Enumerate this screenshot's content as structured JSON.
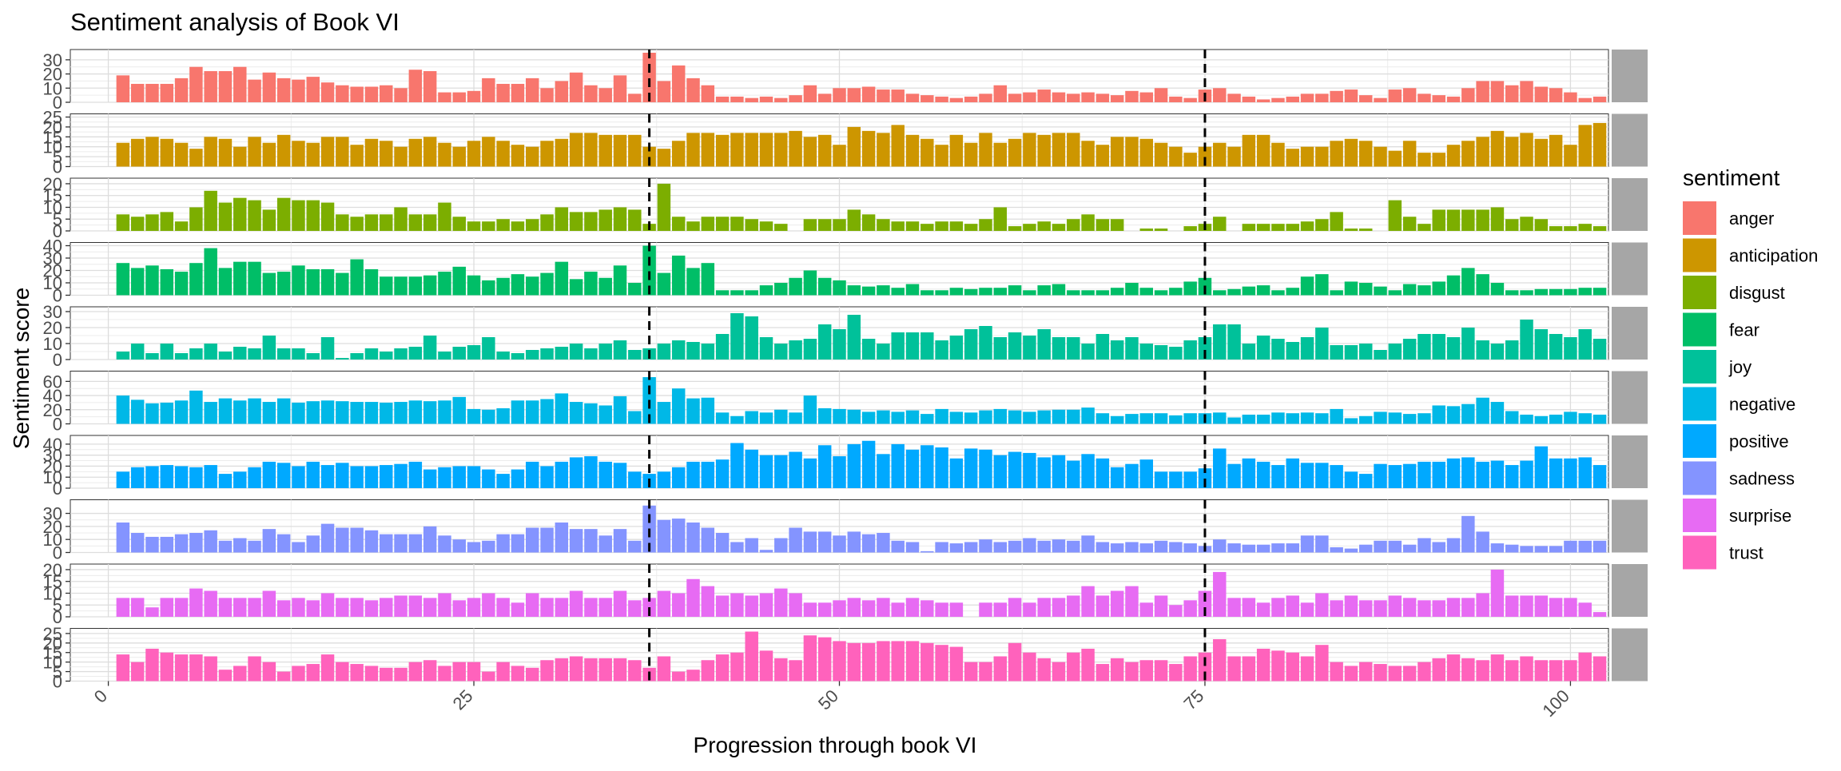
{
  "chart_data": {
    "type": "bar",
    "title": "Sentiment analysis of Book VI",
    "xlabel": "Progression through book VI",
    "ylabel": "Sentiment score",
    "xlim": [
      0,
      100
    ],
    "x_ticks": [
      0,
      25,
      50,
      75,
      100
    ],
    "vlines": [
      37,
      75
    ],
    "legend": {
      "title": "sentiment",
      "placement": "right"
    },
    "grid": true,
    "facets": [
      {
        "name": "anger",
        "strip_label": "anger",
        "color": "#F8766D",
        "ylim": [
          0,
          35
        ],
        "y_ticks": [
          0,
          10,
          20,
          30
        ],
        "values": [
          19,
          13,
          13,
          13,
          17,
          25,
          22,
          22,
          25,
          16,
          21,
          17,
          16,
          18,
          14,
          12,
          11,
          11,
          12,
          10,
          23,
          22,
          7,
          7,
          8,
          17,
          13,
          13,
          17,
          10,
          15,
          21,
          12,
          10,
          19,
          6,
          35,
          15,
          26,
          17,
          12,
          4,
          4,
          3,
          4,
          3,
          5,
          12,
          6,
          10,
          10,
          11,
          9,
          9,
          6,
          5,
          4,
          3,
          4,
          6,
          12,
          6,
          7,
          9,
          7,
          6,
          7,
          6,
          5,
          8,
          7,
          10,
          4,
          3,
          9,
          10,
          6,
          4,
          2,
          3,
          4,
          6,
          6,
          8,
          9,
          5,
          3,
          9,
          10,
          6,
          5,
          4,
          10,
          15,
          15,
          12,
          15,
          11,
          10,
          7,
          3,
          4
        ]
      },
      {
        "name": "anticipation",
        "strip_label": "anticipation",
        "color": "#CD9600",
        "ylim": [
          0,
          25
        ],
        "y_ticks": [
          0,
          5,
          10,
          15,
          20,
          25
        ],
        "values": [
          12,
          14,
          15,
          14,
          12,
          9,
          15,
          14,
          10,
          15,
          12,
          16,
          13,
          12,
          15,
          15,
          11,
          14,
          13,
          10,
          14,
          15,
          12,
          10,
          13,
          15,
          13,
          11,
          10,
          13,
          14,
          17,
          17,
          16,
          16,
          16,
          10,
          9,
          13,
          17,
          17,
          16,
          17,
          17,
          17,
          17,
          18,
          15,
          16,
          11,
          20,
          18,
          17,
          21,
          16,
          14,
          11,
          16,
          12,
          17,
          12,
          14,
          17,
          16,
          17,
          17,
          13,
          11,
          15,
          15,
          14,
          12,
          10,
          7,
          10,
          12,
          10,
          16,
          16,
          12,
          9,
          10,
          10,
          13,
          14,
          13,
          10,
          8,
          13,
          7,
          7,
          11,
          13,
          15,
          18,
          15,
          17,
          14,
          16,
          11,
          21,
          22
        ]
      },
      {
        "name": "disgust",
        "strip_label": "disgust",
        "color": "#7CAE00",
        "ylim": [
          0,
          21
        ],
        "y_ticks": [
          0,
          5,
          10,
          15,
          20
        ],
        "values": [
          7,
          6,
          7,
          8,
          4,
          10,
          17,
          12,
          14,
          13,
          9,
          14,
          13,
          13,
          12,
          7,
          6,
          7,
          7,
          10,
          7,
          7,
          12,
          6,
          4,
          4,
          5,
          4,
          5,
          7,
          10,
          8,
          8,
          9,
          10,
          9,
          3,
          20,
          6,
          4,
          6,
          6,
          6,
          5,
          4,
          3,
          0,
          5,
          5,
          5,
          9,
          7,
          5,
          4,
          4,
          3,
          4,
          4,
          3,
          5,
          10,
          2,
          3,
          4,
          3,
          5,
          7,
          5,
          5,
          0,
          1,
          1,
          0,
          2,
          3,
          6,
          0,
          3,
          3,
          3,
          3,
          4,
          5,
          8,
          1,
          1,
          0,
          13,
          6,
          3,
          9,
          9,
          9,
          9,
          10,
          5,
          6,
          5,
          2,
          2,
          3,
          2
        ]
      },
      {
        "name": "fear",
        "strip_label": "fear",
        "color": "#00BE67",
        "ylim": [
          0,
          40
        ],
        "y_ticks": [
          0,
          10,
          20,
          30,
          40
        ],
        "values": [
          26,
          22,
          24,
          21,
          19,
          26,
          38,
          22,
          27,
          27,
          18,
          19,
          24,
          21,
          21,
          18,
          29,
          21,
          15,
          15,
          15,
          16,
          19,
          23,
          16,
          12,
          14,
          17,
          15,
          18,
          27,
          13,
          19,
          14,
          24,
          10,
          40,
          18,
          32,
          22,
          26,
          4,
          4,
          4,
          8,
          10,
          14,
          20,
          14,
          12,
          8,
          7,
          8,
          6,
          9,
          4,
          4,
          6,
          5,
          6,
          6,
          8,
          4,
          8,
          9,
          4,
          4,
          4,
          6,
          10,
          6,
          4,
          6,
          11,
          14,
          4,
          5,
          7,
          8,
          4,
          6,
          15,
          17,
          4,
          11,
          10,
          7,
          4,
          9,
          8,
          11,
          16,
          22,
          17,
          10,
          4,
          4,
          5,
          5,
          5,
          6,
          6
        ]
      },
      {
        "name": "joy",
        "strip_label": "joy",
        "color": "#00C19A",
        "ylim": [
          0,
          31
        ],
        "y_ticks": [
          0,
          10,
          20,
          30
        ],
        "values": [
          5,
          10,
          4,
          10,
          4,
          7,
          10,
          5,
          8,
          7,
          15,
          7,
          7,
          4,
          14,
          1,
          4,
          7,
          5,
          7,
          8,
          15,
          5,
          8,
          9,
          14,
          5,
          4,
          6,
          7,
          8,
          10,
          7,
          10,
          12,
          6,
          7,
          10,
          12,
          11,
          10,
          16,
          29,
          27,
          14,
          10,
          12,
          13,
          22,
          19,
          28,
          13,
          10,
          17,
          17,
          17,
          12,
          15,
          19,
          21,
          14,
          17,
          15,
          19,
          14,
          14,
          10,
          16,
          12,
          14,
          10,
          9,
          8,
          12,
          14,
          22,
          22,
          10,
          15,
          13,
          11,
          14,
          20,
          9,
          9,
          10,
          6,
          10,
          13,
          16,
          16,
          14,
          20,
          12,
          10,
          12,
          25,
          19,
          16,
          14,
          19,
          13
        ]
      },
      {
        "name": "negative",
        "strip_label": "negative",
        "color": "#00B8E7",
        "ylim": [
          0,
          70
        ],
        "y_ticks": [
          0,
          20,
          40,
          60
        ],
        "values": [
          40,
          34,
          29,
          30,
          33,
          47,
          31,
          36,
          33,
          36,
          31,
          36,
          30,
          32,
          33,
          32,
          31,
          31,
          30,
          31,
          33,
          32,
          33,
          38,
          21,
          20,
          22,
          33,
          33,
          35,
          43,
          31,
          29,
          26,
          39,
          18,
          66,
          31,
          50,
          36,
          37,
          16,
          11,
          18,
          16,
          20,
          16,
          40,
          22,
          21,
          20,
          17,
          19,
          17,
          19,
          14,
          21,
          17,
          16,
          19,
          21,
          19,
          17,
          19,
          20,
          20,
          23,
          15,
          11,
          14,
          15,
          15,
          12,
          15,
          15,
          16,
          9,
          13,
          13,
          16,
          15,
          16,
          15,
          21,
          8,
          11,
          17,
          16,
          14,
          15,
          26,
          25,
          28,
          37,
          31,
          18,
          13,
          11,
          13,
          17,
          15,
          13
        ]
      },
      {
        "name": "positive",
        "strip_label": "positive",
        "color": "#00A9FF",
        "ylim": [
          0,
          45
        ],
        "y_ticks": [
          0,
          10,
          20,
          30,
          40
        ],
        "values": [
          15,
          19,
          20,
          21,
          20,
          19,
          21,
          13,
          15,
          19,
          24,
          23,
          20,
          24,
          21,
          23,
          20,
          20,
          21,
          22,
          24,
          17,
          19,
          20,
          20,
          17,
          13,
          17,
          24,
          20,
          24,
          28,
          29,
          24,
          23,
          15,
          13,
          15,
          19,
          24,
          24,
          26,
          41,
          35,
          30,
          30,
          33,
          27,
          39,
          29,
          40,
          43,
          31,
          40,
          35,
          39,
          37,
          27,
          36,
          35,
          30,
          33,
          32,
          28,
          30,
          25,
          31,
          27,
          19,
          22,
          26,
          15,
          15,
          15,
          18,
          36,
          22,
          27,
          24,
          21,
          27,
          23,
          23,
          21,
          15,
          13,
          22,
          21,
          22,
          24,
          24,
          27,
          28,
          24,
          25,
          21,
          25,
          38,
          27,
          27,
          28,
          21
        ]
      },
      {
        "name": "sadness",
        "strip_label": "sadness",
        "color": "#8494FF",
        "ylim": [
          0,
          38
        ],
        "y_ticks": [
          0,
          10,
          20,
          30
        ],
        "values": [
          23,
          15,
          12,
          12,
          14,
          15,
          17,
          9,
          11,
          9,
          18,
          14,
          8,
          13,
          22,
          19,
          19,
          17,
          14,
          14,
          14,
          20,
          13,
          10,
          8,
          9,
          14,
          14,
          19,
          19,
          23,
          18,
          18,
          13,
          18,
          9,
          36,
          25,
          26,
          23,
          19,
          15,
          8,
          11,
          2,
          11,
          19,
          16,
          16,
          13,
          16,
          14,
          15,
          9,
          8,
          1,
          8,
          7,
          8,
          10,
          8,
          9,
          11,
          9,
          10,
          9,
          13,
          8,
          7,
          8,
          7,
          9,
          8,
          7,
          5,
          10,
          7,
          6,
          6,
          7,
          7,
          13,
          13,
          4,
          3,
          6,
          9,
          9,
          6,
          11,
          8,
          11,
          28,
          16,
          7,
          6,
          5,
          5,
          5,
          9,
          9,
          9
        ]
      },
      {
        "name": "surprise",
        "strip_label": "surprise",
        "color": "#E76BF3",
        "ylim": [
          0,
          21
        ],
        "y_ticks": [
          0,
          5,
          10,
          15,
          20
        ],
        "values": [
          8,
          8,
          4,
          8,
          8,
          12,
          11,
          8,
          8,
          8,
          11,
          7,
          8,
          7,
          10,
          8,
          8,
          7,
          8,
          9,
          9,
          8,
          10,
          7,
          8,
          10,
          8,
          6,
          10,
          8,
          8,
          11,
          8,
          8,
          11,
          7,
          8,
          11,
          10,
          16,
          13,
          9,
          10,
          9,
          10,
          12,
          10,
          6,
          6,
          7,
          8,
          7,
          8,
          6,
          8,
          7,
          6,
          6,
          0,
          6,
          6,
          8,
          6,
          8,
          8,
          9,
          13,
          9,
          11,
          13,
          6,
          9,
          5,
          7,
          11,
          19,
          8,
          8,
          6,
          8,
          9,
          6,
          10,
          7,
          9,
          7,
          7,
          9,
          8,
          7,
          7,
          8,
          8,
          10,
          20,
          9,
          9,
          9,
          8,
          8,
          6,
          2
        ]
      },
      {
        "name": "trust",
        "strip_label": "trust",
        "color": "#FF62BC",
        "ylim": [
          0,
          26
        ],
        "y_ticks": [
          0,
          5,
          10,
          15,
          20,
          25
        ],
        "values": [
          14,
          10,
          17,
          15,
          14,
          14,
          13,
          6,
          8,
          13,
          10,
          5,
          8,
          9,
          14,
          10,
          9,
          8,
          7,
          7,
          10,
          11,
          8,
          10,
          10,
          5,
          10,
          8,
          7,
          11,
          12,
          13,
          12,
          12,
          12,
          11,
          7,
          13,
          5,
          6,
          11,
          14,
          15,
          26,
          16,
          12,
          11,
          24,
          23,
          21,
          20,
          20,
          21,
          21,
          21,
          20,
          19,
          18,
          10,
          10,
          13,
          20,
          15,
          12,
          10,
          15,
          17,
          9,
          12,
          10,
          11,
          11,
          9,
          13,
          15,
          22,
          13,
          13,
          17,
          16,
          15,
          13,
          19,
          10,
          8,
          10,
          9,
          8,
          8,
          10,
          12,
          14,
          12,
          11,
          14,
          11,
          13,
          11,
          11,
          11,
          15,
          13
        ]
      }
    ]
  }
}
